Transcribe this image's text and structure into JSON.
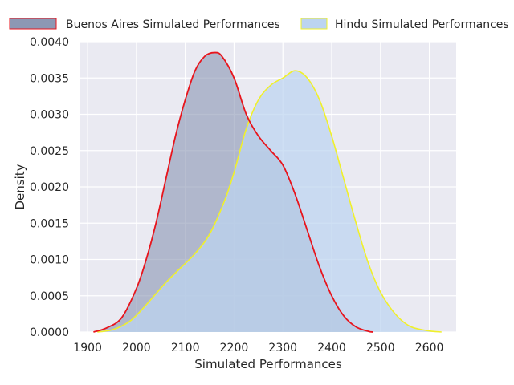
{
  "chart_data": {
    "type": "area",
    "title": "",
    "xlabel": "Simulated Performances",
    "ylabel": "Density",
    "xlim": [
      1885,
      2655
    ],
    "ylim": [
      0,
      0.004
    ],
    "x_ticks": [
      1900,
      2000,
      2100,
      2200,
      2300,
      2400,
      2500,
      2600
    ],
    "y_ticks": [
      0.0,
      0.0005,
      0.001,
      0.0015,
      0.002,
      0.0025,
      0.003,
      0.0035,
      0.004
    ],
    "y_tick_labels": [
      "0.0000",
      "0.0005",
      "0.0010",
      "0.0015",
      "0.0020",
      "0.0025",
      "0.0030",
      "0.0035",
      "0.0040"
    ],
    "grid": true,
    "legend_position": "top",
    "series": [
      {
        "name": "Buenos Aires Simulated Performances",
        "line_color": "#e8141c",
        "fill_color": "#8c98b4",
        "x": [
          1912,
          1940,
          1970,
          2000,
          2020,
          2040,
          2060,
          2080,
          2100,
          2120,
          2140,
          2160,
          2175,
          2200,
          2225,
          2250,
          2275,
          2300,
          2325,
          2350,
          2375,
          2400,
          2425,
          2450,
          2475,
          2485
        ],
        "y": [
          0.0,
          6e-05,
          0.0002,
          0.0006,
          0.001,
          0.0015,
          0.0021,
          0.0027,
          0.0032,
          0.0036,
          0.0038,
          0.00385,
          0.0038,
          0.0035,
          0.003,
          0.0027,
          0.0025,
          0.0023,
          0.0019,
          0.0014,
          0.0009,
          0.0005,
          0.00022,
          7e-05,
          1e-05,
          0.0
        ]
      },
      {
        "name": "Hindu Simulated Performances",
        "line_color": "#f0f02a",
        "fill_color": "#bcd4f0",
        "x": [
          1920,
          1950,
          1980,
          2000,
          2030,
          2060,
          2090,
          2120,
          2150,
          2180,
          2200,
          2225,
          2250,
          2275,
          2300,
          2325,
          2350,
          2375,
          2400,
          2425,
          2450,
          2475,
          2500,
          2530,
          2560,
          2595,
          2625
        ],
        "y": [
          0.0,
          3e-05,
          0.00012,
          0.00023,
          0.00045,
          0.00068,
          0.00088,
          0.00108,
          0.00135,
          0.0018,
          0.0022,
          0.0028,
          0.0032,
          0.0034,
          0.0035,
          0.0036,
          0.0035,
          0.0032,
          0.0027,
          0.0021,
          0.0015,
          0.00095,
          0.00055,
          0.00025,
          8e-05,
          2e-05,
          0.0
        ]
      }
    ]
  }
}
